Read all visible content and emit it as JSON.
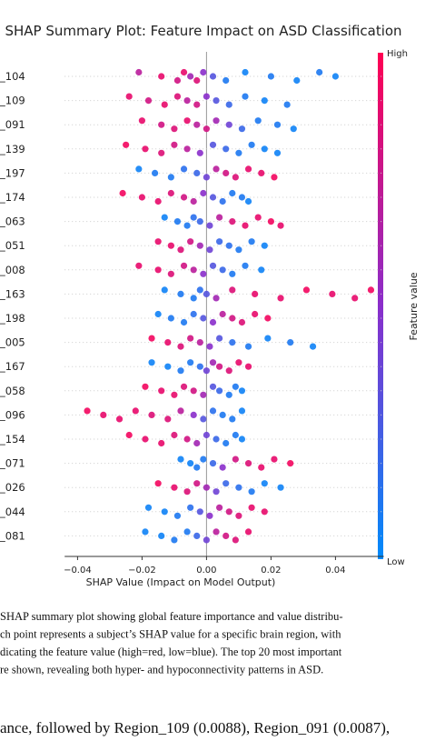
{
  "chart_data": {
    "type": "beeswarm",
    "title": "SHAP Summary Plot: Feature Impact on ASD Classification",
    "xlabel": "SHAP Value (Impact on Model Output)",
    "xlim": [
      -0.044,
      0.055
    ],
    "xticks": [
      {
        "value": -0.04,
        "label": "−0.04"
      },
      {
        "value": -0.02,
        "label": "−0.02"
      },
      {
        "value": 0,
        "label": "0.00"
      },
      {
        "value": 0.02,
        "label": "0.02"
      },
      {
        "value": 0.04,
        "label": "0.04"
      }
    ],
    "colorbar": {
      "high": "High",
      "low": "Low",
      "label": "Feature value",
      "high_color": "#ff0052",
      "low_color": "#008bfb"
    },
    "rows": [
      {
        "label": "_104",
        "values": [
          -0.021,
          -0.014,
          -0.009,
          -0.007,
          -0.005,
          -0.003,
          -0.001,
          0.002,
          0.006,
          0.012,
          0.02,
          0.028,
          0.035,
          0.04
        ],
        "feature_values": [
          0.7,
          0.9,
          0.8,
          0.9,
          0.6,
          0.85,
          0.5,
          0.3,
          0.1,
          0.05,
          0.1,
          0.05,
          0.1,
          0.05
        ]
      },
      {
        "label": "_109",
        "values": [
          -0.024,
          -0.018,
          -0.013,
          -0.009,
          -0.006,
          -0.003,
          0,
          0.003,
          0.007,
          0.012,
          0.018,
          0.025
        ],
        "feature_values": [
          0.9,
          0.8,
          0.9,
          0.85,
          0.7,
          0.8,
          0.5,
          0.3,
          0.2,
          0.1,
          0.05,
          0.1
        ]
      },
      {
        "label": "_091",
        "values": [
          -0.02,
          -0.014,
          -0.01,
          -0.006,
          -0.003,
          0,
          0.003,
          0.007,
          0.011,
          0.016,
          0.022,
          0.027
        ],
        "feature_values": [
          0.9,
          0.8,
          0.85,
          0.9,
          0.7,
          0.8,
          0.6,
          0.4,
          0.2,
          0.1,
          0.1,
          0.05
        ]
      },
      {
        "label": "_139",
        "values": [
          -0.025,
          -0.019,
          -0.014,
          -0.01,
          -0.006,
          -0.002,
          0.002,
          0.006,
          0.01,
          0.014,
          0.018,
          0.022
        ],
        "feature_values": [
          0.95,
          0.9,
          0.85,
          0.8,
          0.7,
          0.5,
          0.3,
          0.2,
          0.1,
          0.1,
          0.05,
          0.05
        ]
      },
      {
        "label": "_197",
        "values": [
          -0.021,
          -0.016,
          -0.011,
          -0.007,
          -0.003,
          0,
          0.003,
          0.006,
          0.009,
          0.013,
          0.017,
          0.021
        ],
        "feature_values": [
          0.05,
          0.1,
          0.1,
          0.15,
          0.2,
          0.4,
          0.7,
          0.8,
          0.85,
          0.9,
          0.9,
          0.95
        ]
      },
      {
        "label": "_174",
        "values": [
          -0.026,
          -0.02,
          -0.015,
          -0.011,
          -0.007,
          -0.004,
          -0.001,
          0.002,
          0.005,
          0.008,
          0.011,
          0.013
        ],
        "feature_values": [
          0.95,
          0.9,
          0.9,
          0.85,
          0.8,
          0.7,
          0.5,
          0.3,
          0.15,
          0.1,
          0.1,
          0.05
        ]
      },
      {
        "label": "_063",
        "values": [
          -0.013,
          -0.009,
          -0.006,
          -0.004,
          -0.002,
          0.001,
          0.004,
          0.008,
          0.012,
          0.016,
          0.02,
          0.023
        ],
        "feature_values": [
          0.05,
          0.1,
          0.1,
          0.15,
          0.2,
          0.4,
          0.7,
          0.85,
          0.9,
          0.9,
          0.95,
          0.9
        ]
      },
      {
        "label": "_051",
        "values": [
          -0.015,
          -0.011,
          -0.008,
          -0.005,
          -0.002,
          0.001,
          0.004,
          0.007,
          0.01,
          0.014,
          0.018
        ],
        "feature_values": [
          0.9,
          0.9,
          0.85,
          0.8,
          0.6,
          0.4,
          0.2,
          0.15,
          0.1,
          0.1,
          0.05
        ]
      },
      {
        "label": "_008",
        "values": [
          -0.021,
          -0.015,
          -0.011,
          -0.007,
          -0.004,
          -0.001,
          0.002,
          0.005,
          0.008,
          0.012,
          0.017
        ],
        "feature_values": [
          0.9,
          0.9,
          0.85,
          0.8,
          0.7,
          0.5,
          0.3,
          0.2,
          0.1,
          0.1,
          0.05
        ]
      },
      {
        "label": "_163",
        "values": [
          -0.013,
          -0.008,
          -0.004,
          -0.002,
          0,
          0.003,
          0.008,
          0.015,
          0.023,
          0.031,
          0.039,
          0.046,
          0.051
        ],
        "feature_values": [
          0.05,
          0.1,
          0.1,
          0.15,
          0.3,
          0.6,
          0.85,
          0.9,
          0.9,
          0.95,
          0.9,
          0.9,
          0.95
        ]
      },
      {
        "label": "_198",
        "values": [
          -0.015,
          -0.011,
          -0.007,
          -0.004,
          -0.001,
          0.002,
          0.005,
          0.008,
          0.011,
          0.015,
          0.019
        ],
        "feature_values": [
          0.05,
          0.1,
          0.1,
          0.15,
          0.3,
          0.5,
          0.7,
          0.8,
          0.85,
          0.9,
          0.95
        ]
      },
      {
        "label": "_005",
        "values": [
          -0.017,
          -0.012,
          -0.008,
          -0.005,
          -0.002,
          0.001,
          0.004,
          0.008,
          0.013,
          0.019,
          0.026,
          0.033
        ],
        "feature_values": [
          0.95,
          0.9,
          0.85,
          0.8,
          0.7,
          0.5,
          0.3,
          0.15,
          0.1,
          0.05,
          0.1,
          0.05
        ]
      },
      {
        "label": "_167",
        "values": [
          -0.017,
          -0.012,
          -0.008,
          -0.005,
          -0.002,
          0,
          0.002,
          0.004,
          0.007,
          0.01,
          0.013
        ],
        "feature_values": [
          0.05,
          0.05,
          0.1,
          0.1,
          0.15,
          0.4,
          0.6,
          0.8,
          0.85,
          0.9,
          0.9
        ]
      },
      {
        "label": "_058",
        "values": [
          -0.019,
          -0.014,
          -0.01,
          -0.007,
          -0.004,
          -0.001,
          0.002,
          0.004,
          0.007,
          0.009,
          0.011
        ],
        "feature_values": [
          0.95,
          0.9,
          0.9,
          0.85,
          0.8,
          0.6,
          0.3,
          0.2,
          0.1,
          0.1,
          0.05
        ]
      },
      {
        "label": "_096",
        "values": [
          -0.037,
          -0.032,
          -0.027,
          -0.022,
          -0.017,
          -0.012,
          -0.008,
          -0.004,
          -0.001,
          0.002,
          0.005,
          0.008,
          0.011
        ],
        "feature_values": [
          0.95,
          0.9,
          0.9,
          0.9,
          0.85,
          0.85,
          0.7,
          0.5,
          0.3,
          0.15,
          0.1,
          0.1,
          0.05
        ]
      },
      {
        "label": "_154",
        "values": [
          -0.024,
          -0.019,
          -0.014,
          -0.01,
          -0.006,
          -0.003,
          0,
          0.003,
          0.006,
          0.009,
          0.011
        ],
        "feature_values": [
          0.95,
          0.9,
          0.9,
          0.85,
          0.8,
          0.6,
          0.4,
          0.2,
          0.1,
          0.1,
          0.05
        ]
      },
      {
        "label": "_071",
        "values": [
          -0.008,
          -0.005,
          -0.003,
          -0.001,
          0.002,
          0.005,
          0.009,
          0.013,
          0.017,
          0.021,
          0.026
        ],
        "feature_values": [
          0.05,
          0.05,
          0.1,
          0.1,
          0.2,
          0.5,
          0.8,
          0.85,
          0.9,
          0.9,
          0.95
        ]
      },
      {
        "label": "_026",
        "values": [
          -0.015,
          -0.01,
          -0.006,
          -0.003,
          0,
          0.003,
          0.006,
          0.01,
          0.014,
          0.018,
          0.023
        ],
        "feature_values": [
          0.95,
          0.9,
          0.85,
          0.8,
          0.6,
          0.4,
          0.2,
          0.15,
          0.1,
          0.05,
          0.05
        ]
      },
      {
        "label": "_044",
        "values": [
          -0.018,
          -0.013,
          -0.009,
          -0.005,
          -0.002,
          0.001,
          0.004,
          0.007,
          0.01,
          0.014,
          0.018
        ],
        "feature_values": [
          0.05,
          0.05,
          0.1,
          0.15,
          0.3,
          0.5,
          0.7,
          0.8,
          0.85,
          0.9,
          0.9
        ]
      },
      {
        "label": "_081",
        "values": [
          -0.019,
          -0.014,
          -0.01,
          -0.006,
          -0.003,
          0,
          0.003,
          0.006,
          0.009,
          0.013
        ],
        "feature_values": [
          0.05,
          0.05,
          0.1,
          0.1,
          0.2,
          0.4,
          0.7,
          0.8,
          0.85,
          0.9
        ]
      }
    ]
  },
  "caption": [
    "SHAP summary plot showing global feature importance and value distribu-",
    "ch point represents a subject’s SHAP value for a specific brain region, with",
    "dicating the feature value (high=red, low=blue). The top 20 most important",
    "re shown, revealing both hyper- and hypoconnectivity patterns in ASD."
  ],
  "body_text": "ance, followed by Region_109 (0.0088), Region_091 (0.0087),"
}
